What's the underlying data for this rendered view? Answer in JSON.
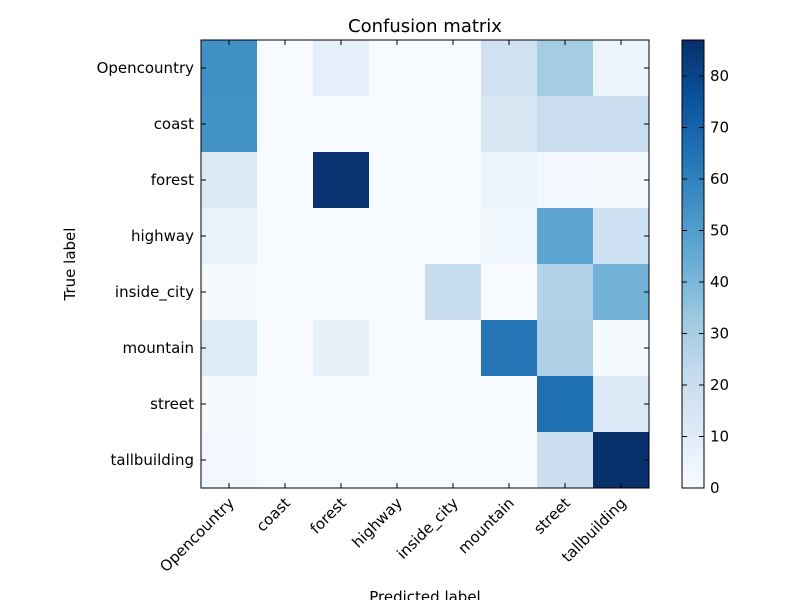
{
  "chart_data": {
    "type": "heatmap",
    "title": "Confusion matrix",
    "xlabel": "Predicted label",
    "ylabel": "True label",
    "x_categories": [
      "Opencountry",
      "coast",
      "forest",
      "highway",
      "inside_city",
      "mountain",
      "street",
      "tallbuilding"
    ],
    "y_categories": [
      "Opencountry",
      "coast",
      "forest",
      "highway",
      "inside_city",
      "mountain",
      "street",
      "tallbuilding"
    ],
    "values": [
      [
        55,
        0,
        8,
        0,
        0,
        17,
        31,
        5
      ],
      [
        54,
        0,
        0,
        0,
        0,
        13,
        20,
        20
      ],
      [
        12,
        0,
        86,
        0,
        0,
        5,
        2,
        1
      ],
      [
        6,
        0,
        0,
        0,
        0,
        3,
        47,
        18
      ],
      [
        1,
        0,
        0,
        0,
        21,
        0,
        27,
        42
      ],
      [
        11,
        0,
        7,
        0,
        0,
        64,
        28,
        1
      ],
      [
        1,
        0,
        0,
        0,
        0,
        0,
        66,
        12
      ],
      [
        2,
        0,
        0,
        0,
        0,
        0,
        19,
        87
      ]
    ],
    "colormap": "Blues",
    "colorbar": {
      "min": 0,
      "max": 87,
      "ticks": [
        0,
        10,
        20,
        30,
        40,
        50,
        60,
        70,
        80
      ]
    },
    "grid": false
  }
}
